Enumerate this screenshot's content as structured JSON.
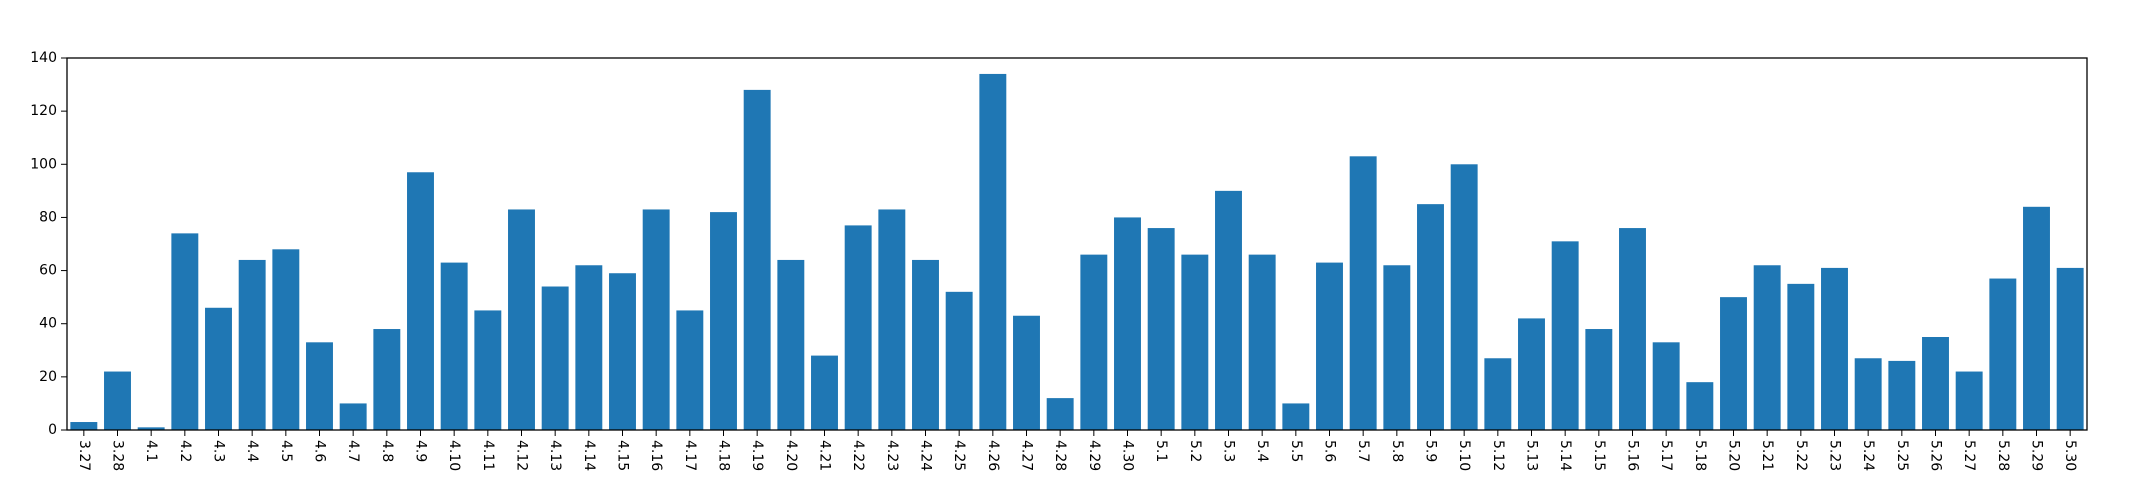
{
  "chart_data": {
    "type": "bar",
    "categories": [
      "3.27",
      "3.28",
      "4.1",
      "4.2",
      "4.3",
      "4.4",
      "4.5",
      "4.6",
      "4.7",
      "4.8",
      "4.9",
      "4.10",
      "4.11",
      "4.12",
      "4.13",
      "4.14",
      "4.15",
      "4.16",
      "4.17",
      "4.18",
      "4.19",
      "4.20",
      "4.21",
      "4.22",
      "4.23",
      "4.24",
      "4.25",
      "4.26",
      "4.27",
      "4.28",
      "4.29",
      "4.30",
      "5.1",
      "5.2",
      "5.3",
      "5.4",
      "5.5",
      "5.6",
      "5.7",
      "5.8",
      "5.9",
      "5.10",
      "5.12",
      "5.13",
      "5.14",
      "5.15",
      "5.16",
      "5.17",
      "5.18",
      "5.20",
      "5.21",
      "5.22",
      "5.23",
      "5.24",
      "5.25",
      "5.26",
      "5.27",
      "5.28",
      "5.29",
      "5.30"
    ],
    "values": [
      3,
      22,
      1,
      74,
      46,
      64,
      68,
      33,
      10,
      38,
      97,
      63,
      45,
      83,
      54,
      62,
      59,
      83,
      45,
      82,
      128,
      64,
      28,
      77,
      83,
      64,
      52,
      134,
      43,
      12,
      66,
      80,
      76,
      66,
      90,
      66,
      10,
      63,
      103,
      62,
      85,
      100,
      27,
      42,
      71,
      38,
      76,
      33,
      18,
      50,
      62,
      55,
      61,
      27,
      26,
      35,
      22,
      57,
      84,
      61
    ],
    "title": "",
    "xlabel": "",
    "ylabel": "",
    "ylim": [
      0,
      140
    ],
    "yticks": [
      0,
      20,
      40,
      60,
      80,
      100,
      120,
      140
    ],
    "grid": false,
    "bar_color": "#1f77b4"
  }
}
